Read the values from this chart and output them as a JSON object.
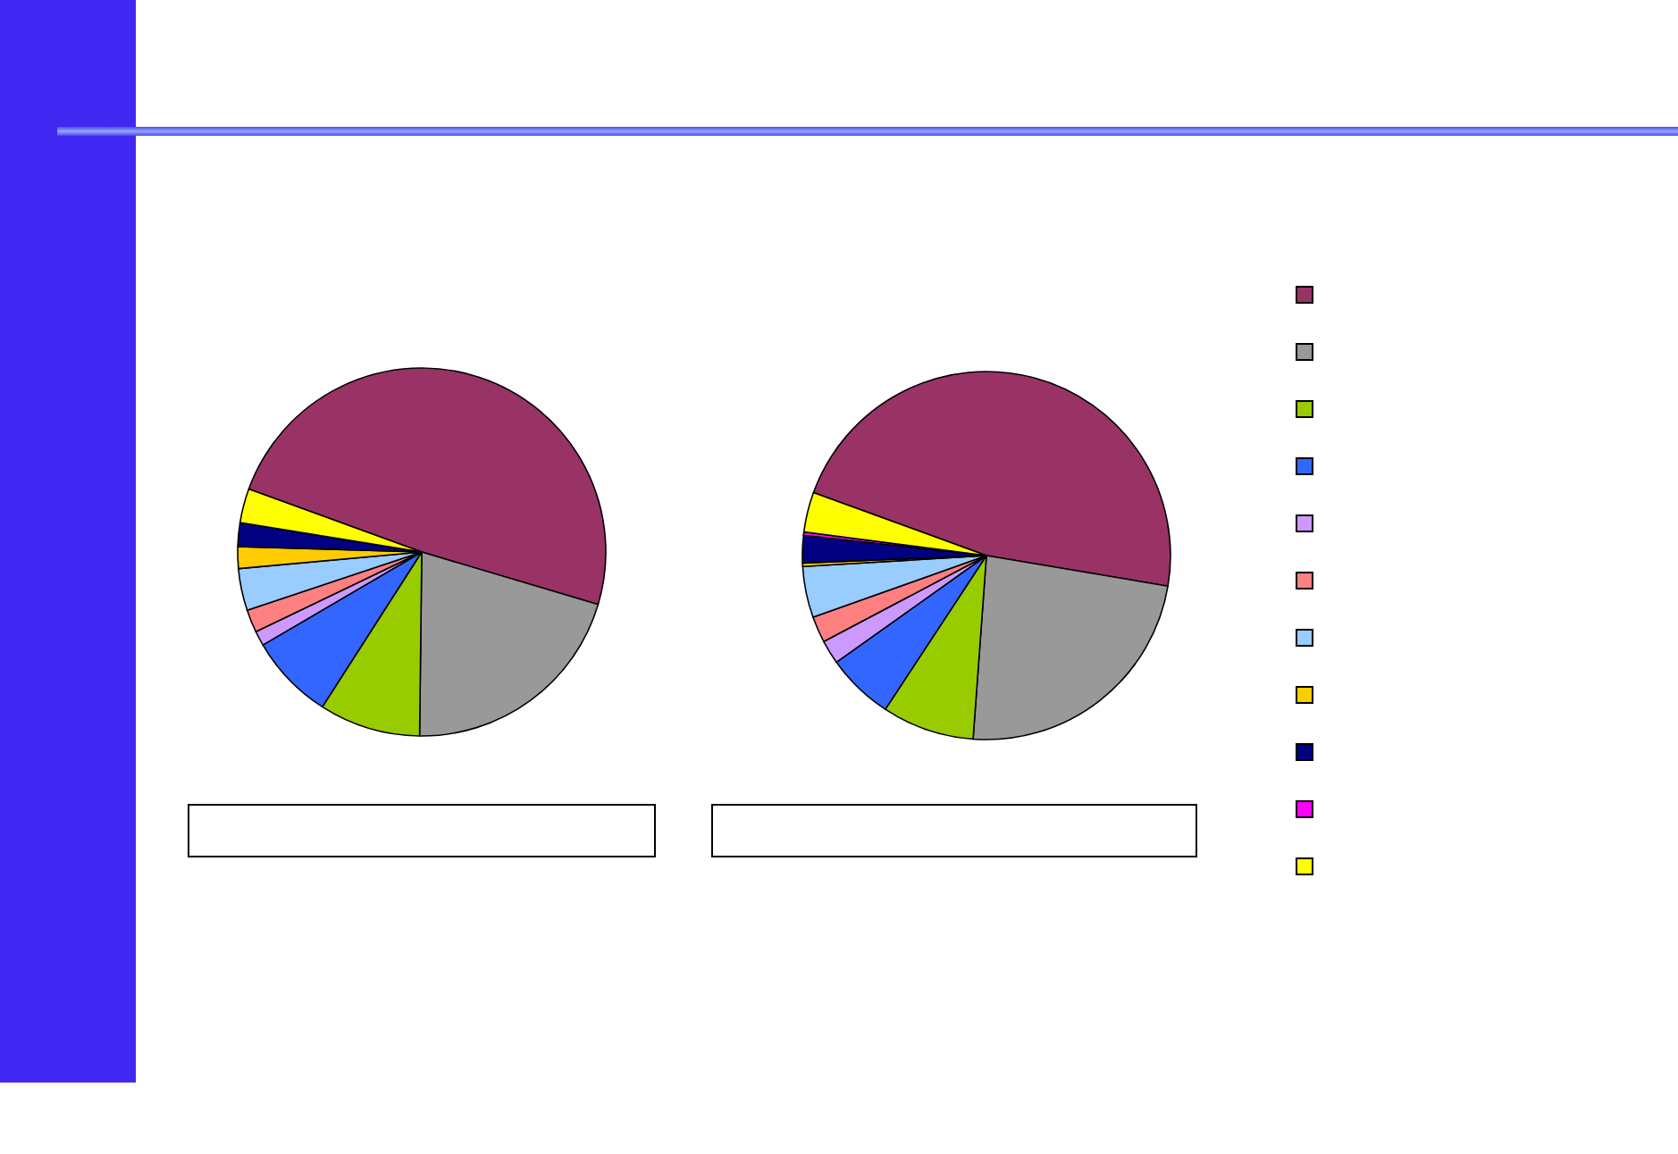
{
  "chart_data": [
    {
      "type": "pie",
      "categories": [
        null,
        null,
        null,
        null,
        null,
        null,
        null,
        null,
        null,
        null,
        null
      ],
      "values": [
        49.1,
        20.6,
        8.9,
        7.5,
        1.3,
        2.0,
        3.7,
        1.9,
        2.1,
        0,
        3.0
      ],
      "colors": [
        "#993366",
        "#999999",
        "#99cc00",
        "#3366ff",
        "#cc99ff",
        "#ff8080",
        "#99ccff",
        "#ffcc00",
        "#000080",
        "#ff00ff",
        "#ffff00"
      ]
    },
    {
      "type": "pie",
      "categories": [
        null,
        null,
        null,
        null,
        null,
        null,
        null,
        null,
        null,
        null,
        null
      ],
      "values": [
        47.1,
        23.5,
        8.1,
        5.9,
        2.1,
        2.3,
        4.5,
        0.3,
        2.4,
        0.3,
        3.5
      ],
      "colors": [
        "#993366",
        "#999999",
        "#99cc00",
        "#3366ff",
        "#cc99ff",
        "#ff8080",
        "#99ccff",
        "#ffcc00",
        "#000080",
        "#ff00ff",
        "#ffff00"
      ]
    }
  ]
}
